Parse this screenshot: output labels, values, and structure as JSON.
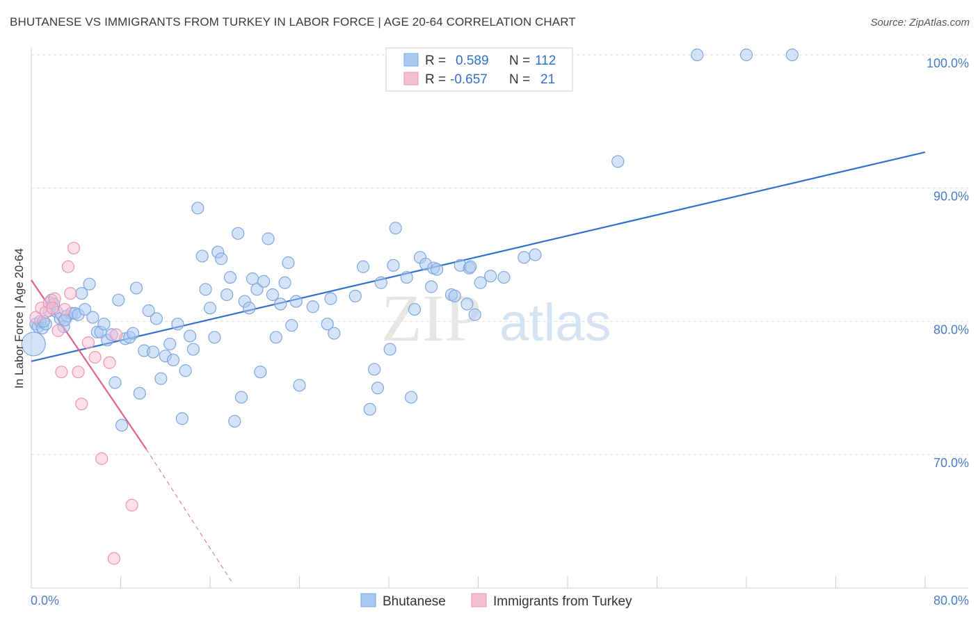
{
  "title": "BHUTANESE VS IMMIGRANTS FROM TURKEY IN LABOR FORCE | AGE 20-64 CORRELATION CHART",
  "source": "Source: ZipAtlas.com",
  "watermark": {
    "zip": "ZIP",
    "atlas": "atlas"
  },
  "colors": {
    "blue_fill": "#a9c8f0",
    "blue_stroke": "#7ea6de",
    "blue_line": "#2f6fce",
    "pink_fill": "#f6bfd0",
    "pink_stroke": "#ec93b2",
    "pink_line": "#e0608f",
    "grid": "#dcdcdc",
    "tick_text": "#4a7cc9"
  },
  "legend": {
    "rows": [
      {
        "r_label": "R =",
        "r_value": "0.589",
        "n_label": "N =",
        "n_value": "112"
      },
      {
        "r_label": "R =",
        "r_value": "-0.657",
        "n_label": "N =",
        "n_value": "21"
      }
    ]
  },
  "chart_data": {
    "type": "scatter",
    "ylabel": "In Labor Force | Age 20-64",
    "xlim": [
      0,
      80
    ],
    "ylim": [
      60,
      100
    ],
    "x_tick_labels": [
      "0.0%",
      "80.0%"
    ],
    "y_ticks": [
      70,
      80,
      90,
      100
    ],
    "y_tick_labels": [
      "70.0%",
      "80.0%",
      "90.0%",
      "100.0%"
    ],
    "grid": true,
    "legend_position": "top-center",
    "series": [
      {
        "name": "Bhutanese",
        "color": "#a9c8f0",
        "trend": {
          "x": [
            0,
            80
          ],
          "y": [
            77.0,
            92.7
          ]
        },
        "points": [
          [
            0.2,
            78.3
          ],
          [
            0.4,
            79.8
          ],
          [
            0.6,
            79.6
          ],
          [
            0.8,
            80.0
          ],
          [
            1.0,
            79.5
          ],
          [
            1.3,
            79.8
          ],
          [
            1.6,
            80.8
          ],
          [
            1.8,
            81.6
          ],
          [
            2.0,
            81.3
          ],
          [
            2.3,
            80.7
          ],
          [
            2.6,
            80.2
          ],
          [
            2.9,
            79.6
          ],
          [
            3.2,
            80.4
          ],
          [
            3.6,
            80.6
          ],
          [
            3.9,
            80.6
          ],
          [
            4.2,
            80.5
          ],
          [
            4.5,
            82.1
          ],
          [
            4.8,
            80.9
          ],
          [
            5.2,
            82.8
          ],
          [
            5.5,
            80.3
          ],
          [
            5.9,
            79.2
          ],
          [
            6.2,
            79.2
          ],
          [
            6.5,
            79.8
          ],
          [
            6.8,
            78.6
          ],
          [
            7.2,
            79.0
          ],
          [
            7.5,
            75.4
          ],
          [
            7.8,
            81.6
          ],
          [
            8.1,
            72.2
          ],
          [
            8.4,
            78.7
          ],
          [
            8.8,
            78.8
          ],
          [
            9.1,
            79.1
          ],
          [
            9.4,
            82.5
          ],
          [
            9.7,
            74.6
          ],
          [
            10.1,
            77.8
          ],
          [
            10.5,
            80.8
          ],
          [
            10.9,
            77.7
          ],
          [
            11.2,
            80.2
          ],
          [
            11.6,
            75.7
          ],
          [
            12.0,
            77.4
          ],
          [
            12.4,
            78.3
          ],
          [
            12.7,
            77.1
          ],
          [
            13.1,
            79.8
          ],
          [
            13.5,
            72.7
          ],
          [
            13.8,
            76.3
          ],
          [
            14.2,
            78.9
          ],
          [
            14.5,
            77.9
          ],
          [
            14.9,
            88.5
          ],
          [
            15.3,
            84.9
          ],
          [
            15.6,
            82.4
          ],
          [
            16.0,
            81.0
          ],
          [
            16.4,
            78.8
          ],
          [
            16.7,
            85.2
          ],
          [
            17.0,
            84.7
          ],
          [
            17.5,
            82.0
          ],
          [
            17.8,
            83.3
          ],
          [
            18.2,
            72.5
          ],
          [
            18.5,
            86.6
          ],
          [
            18.8,
            74.3
          ],
          [
            19.1,
            81.5
          ],
          [
            19.5,
            81.0
          ],
          [
            19.8,
            83.2
          ],
          [
            20.2,
            82.4
          ],
          [
            20.5,
            76.2
          ],
          [
            20.8,
            83.0
          ],
          [
            21.2,
            86.2
          ],
          [
            21.6,
            82.0
          ],
          [
            21.9,
            78.8
          ],
          [
            22.3,
            81.3
          ],
          [
            22.7,
            82.9
          ],
          [
            23.0,
            84.4
          ],
          [
            23.3,
            79.7
          ],
          [
            23.7,
            81.5
          ],
          [
            24.0,
            75.2
          ],
          [
            25.2,
            81.1
          ],
          [
            26.5,
            79.8
          ],
          [
            26.8,
            81.7
          ],
          [
            27.1,
            79.1
          ],
          [
            29.0,
            81.9
          ],
          [
            29.7,
            84.1
          ],
          [
            30.3,
            73.4
          ],
          [
            30.7,
            76.4
          ],
          [
            31.0,
            75.0
          ],
          [
            31.3,
            82.9
          ],
          [
            32.1,
            77.9
          ],
          [
            32.4,
            84.2
          ],
          [
            32.6,
            87.0
          ],
          [
            33.6,
            83.3
          ],
          [
            34.0,
            74.3
          ],
          [
            34.3,
            80.9
          ],
          [
            34.8,
            84.8
          ],
          [
            35.3,
            84.3
          ],
          [
            35.8,
            82.6
          ],
          [
            36.0,
            84.0
          ],
          [
            36.3,
            83.9
          ],
          [
            37.6,
            82.0
          ],
          [
            37.9,
            81.9
          ],
          [
            38.4,
            84.2
          ],
          [
            39.2,
            84.0
          ],
          [
            39.0,
            81.3
          ],
          [
            39.7,
            80.5
          ],
          [
            39.3,
            84.1
          ],
          [
            40.2,
            82.9
          ],
          [
            41.1,
            83.4
          ],
          [
            42.3,
            83.3
          ],
          [
            44.1,
            84.8
          ],
          [
            45.1,
            85.0
          ],
          [
            52.5,
            92.0
          ],
          [
            59.6,
            100.0
          ],
          [
            64.0,
            100.0
          ],
          [
            68.1,
            100.0
          ],
          [
            1.1,
            80.0
          ],
          [
            3.0,
            80.1
          ]
        ]
      },
      {
        "name": "Immigrants from Turkey",
        "color": "#f6bfd0",
        "trend": {
          "x": [
            0,
            10.3
          ],
          "y": [
            83.1,
            70.4
          ]
        },
        "trend_dashed": {
          "x": [
            10.3,
            17.9
          ],
          "y": [
            70.4,
            60.5
          ]
        },
        "points": [
          [
            0.4,
            80.3
          ],
          [
            0.9,
            81.0
          ],
          [
            1.3,
            80.7
          ],
          [
            1.6,
            81.4
          ],
          [
            2.1,
            81.7
          ],
          [
            2.4,
            79.3
          ],
          [
            2.7,
            76.2
          ],
          [
            3.0,
            80.9
          ],
          [
            3.3,
            84.1
          ],
          [
            3.5,
            82.1
          ],
          [
            3.8,
            85.5
          ],
          [
            4.2,
            76.2
          ],
          [
            4.5,
            73.8
          ],
          [
            5.1,
            78.4
          ],
          [
            5.7,
            77.3
          ],
          [
            6.3,
            69.7
          ],
          [
            7.4,
            62.2
          ],
          [
            7.6,
            79.0
          ],
          [
            9.0,
            66.2
          ],
          [
            7.0,
            76.9
          ],
          [
            1.9,
            81.0
          ]
        ]
      }
    ]
  }
}
